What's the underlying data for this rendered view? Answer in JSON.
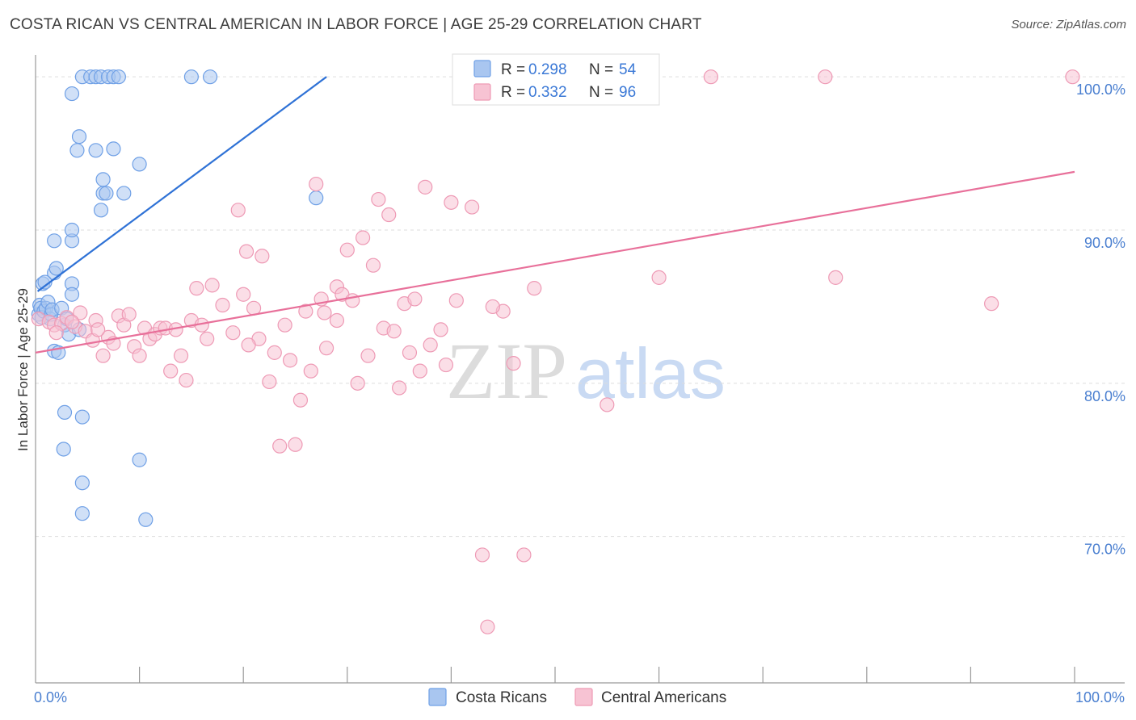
{
  "header": {
    "title": "COSTA RICAN VS CENTRAL AMERICAN IN LABOR FORCE | AGE 25-29 CORRELATION CHART",
    "source": "Source: ZipAtlas.com"
  },
  "watermark": {
    "zip": "ZIP",
    "atlas": "atlas"
  },
  "legend": {
    "items": [
      {
        "r_label": "R =",
        "r_value": "0.298",
        "n_label": "N =",
        "n_value": "54",
        "color": "#6fa0e6"
      },
      {
        "r_label": "R =",
        "r_value": "0.332",
        "n_label": "N =",
        "n_value": "96",
        "color": "#f3a6bf"
      }
    ]
  },
  "colors": {
    "blue_fill": "#a9c6f0",
    "blue_stroke": "#6fa0e6",
    "blue_line": "#2f72d6",
    "pink_fill": "#f7c3d3",
    "pink_stroke": "#ee9ab5",
    "pink_line": "#e8709a",
    "tick_text": "#4a7fd0",
    "grid": "#dddddd"
  },
  "chart_data": {
    "type": "scatter",
    "title": "COSTA RICAN VS CENTRAL AMERICAN IN LABOR FORCE | AGE 25-29 CORRELATION CHART",
    "xlabel": "",
    "ylabel": "In Labor Force | Age 25-29",
    "xlim": [
      0,
      100
    ],
    "ylim": [
      60.5,
      100.8
    ],
    "x_tick_labels": [
      "0.0%",
      "100.0%"
    ],
    "y_ticks": [
      70,
      80,
      90,
      100
    ],
    "y_tick_labels": [
      "70.0%",
      "80.0%",
      "90.0%",
      "100.0%"
    ],
    "series": [
      {
        "name": "Costa Ricans",
        "R": 0.298,
        "N": 54,
        "trend": {
          "x0": 0.2,
          "y0": 86.0,
          "x1": 28.0,
          "y1": 100.0
        },
        "points": [
          [
            0.3,
            84.5
          ],
          [
            0.4,
            85.1
          ],
          [
            0.5,
            84.9
          ],
          [
            0.6,
            84.3
          ],
          [
            0.8,
            84.7
          ],
          [
            1.0,
            84.9
          ],
          [
            1.2,
            85.3
          ],
          [
            1.4,
            84.2
          ],
          [
            1.5,
            84.5
          ],
          [
            1.6,
            84.8
          ],
          [
            0.7,
            86.5
          ],
          [
            1.8,
            87.2
          ],
          [
            2.0,
            87.5
          ],
          [
            1.8,
            89.3
          ],
          [
            3.5,
            89.3
          ],
          [
            3.5,
            90.0
          ],
          [
            3.5,
            86.5
          ],
          [
            3.5,
            85.8
          ],
          [
            1.8,
            82.1
          ],
          [
            2.2,
            82.0
          ],
          [
            2.5,
            84.9
          ],
          [
            2.8,
            83.8
          ],
          [
            3.0,
            84.2
          ],
          [
            3.2,
            83.2
          ],
          [
            4.2,
            83.5
          ],
          [
            4.2,
            96.1
          ],
          [
            4.0,
            95.2
          ],
          [
            3.5,
            98.9
          ],
          [
            4.5,
            100.0
          ],
          [
            5.3,
            100.0
          ],
          [
            5.8,
            100.0
          ],
          [
            6.3,
            100.0
          ],
          [
            7.0,
            100.0
          ],
          [
            7.5,
            100.0
          ],
          [
            8.0,
            100.0
          ],
          [
            7.5,
            95.3
          ],
          [
            5.8,
            95.2
          ],
          [
            6.5,
            93.3
          ],
          [
            6.5,
            92.4
          ],
          [
            6.3,
            91.3
          ],
          [
            6.8,
            92.4
          ],
          [
            8.5,
            92.4
          ],
          [
            10.0,
            94.3
          ],
          [
            15.0,
            100.0
          ],
          [
            16.8,
            100.0
          ],
          [
            27.0,
            92.1
          ],
          [
            2.8,
            78.1
          ],
          [
            4.5,
            77.8
          ],
          [
            2.7,
            75.7
          ],
          [
            10.0,
            75.0
          ],
          [
            4.5,
            73.5
          ],
          [
            4.5,
            71.5
          ],
          [
            10.6,
            71.1
          ],
          [
            0.9,
            86.6
          ]
        ]
      },
      {
        "name": "Central Americans",
        "R": 0.332,
        "N": 96,
        "trend": {
          "x0": 0.0,
          "y0": 82.0,
          "x1": 100.0,
          "y1": 93.8
        },
        "points": [
          [
            0.3,
            84.2
          ],
          [
            1.3,
            84.0
          ],
          [
            1.8,
            83.8
          ],
          [
            2.5,
            83.9
          ],
          [
            3.0,
            84.3
          ],
          [
            3.8,
            83.7
          ],
          [
            4.3,
            84.6
          ],
          [
            4.8,
            83.4
          ],
          [
            5.5,
            82.8
          ],
          [
            5.8,
            84.1
          ],
          [
            6.5,
            81.8
          ],
          [
            7.0,
            83.0
          ],
          [
            7.5,
            82.6
          ],
          [
            8.0,
            84.4
          ],
          [
            8.5,
            83.8
          ],
          [
            9.0,
            84.5
          ],
          [
            9.5,
            82.4
          ],
          [
            10.0,
            81.8
          ],
          [
            10.5,
            83.6
          ],
          [
            11.0,
            82.9
          ],
          [
            11.5,
            83.2
          ],
          [
            12.0,
            83.6
          ],
          [
            12.5,
            83.6
          ],
          [
            13.0,
            80.8
          ],
          [
            13.5,
            83.5
          ],
          [
            14.0,
            81.8
          ],
          [
            14.5,
            80.2
          ],
          [
            15.0,
            84.1
          ],
          [
            15.5,
            86.2
          ],
          [
            16.0,
            83.8
          ],
          [
            16.5,
            82.9
          ],
          [
            17.0,
            86.4
          ],
          [
            18.0,
            85.1
          ],
          [
            19.0,
            83.3
          ],
          [
            19.5,
            91.3
          ],
          [
            20.0,
            85.8
          ],
          [
            20.3,
            88.6
          ],
          [
            21.0,
            84.9
          ],
          [
            21.5,
            82.9
          ],
          [
            21.8,
            88.3
          ],
          [
            22.5,
            80.1
          ],
          [
            23.0,
            82.0
          ],
          [
            23.5,
            75.9
          ],
          [
            24.0,
            83.8
          ],
          [
            24.5,
            81.5
          ],
          [
            25.0,
            76.0
          ],
          [
            25.5,
            78.9
          ],
          [
            26.0,
            84.7
          ],
          [
            26.5,
            80.8
          ],
          [
            27.0,
            93.0
          ],
          [
            27.5,
            85.5
          ],
          [
            28.0,
            82.3
          ],
          [
            29.0,
            86.3
          ],
          [
            29.5,
            85.8
          ],
          [
            30.0,
            88.7
          ],
          [
            30.5,
            85.4
          ],
          [
            31.0,
            80.0
          ],
          [
            31.5,
            89.5
          ],
          [
            32.0,
            81.8
          ],
          [
            32.5,
            87.7
          ],
          [
            33.0,
            92.0
          ],
          [
            33.5,
            83.6
          ],
          [
            34.0,
            91.0
          ],
          [
            34.5,
            83.4
          ],
          [
            35.0,
            79.7
          ],
          [
            35.5,
            85.2
          ],
          [
            36.0,
            82.0
          ],
          [
            36.5,
            85.5
          ],
          [
            37.0,
            80.8
          ],
          [
            37.5,
            92.8
          ],
          [
            38.0,
            82.5
          ],
          [
            39.0,
            83.5
          ],
          [
            40.0,
            91.8
          ],
          [
            40.5,
            85.4
          ],
          [
            42.0,
            91.5
          ],
          [
            43.0,
            68.8
          ],
          [
            43.5,
            64.1
          ],
          [
            45.0,
            84.7
          ],
          [
            46.0,
            81.3
          ],
          [
            47.0,
            68.8
          ],
          [
            48.0,
            86.2
          ],
          [
            55.0,
            78.6
          ],
          [
            60.0,
            86.9
          ],
          [
            65.0,
            100.0
          ],
          [
            76.0,
            100.0
          ],
          [
            77.0,
            86.9
          ],
          [
            92.0,
            85.2
          ],
          [
            99.8,
            100.0
          ],
          [
            2.0,
            83.3
          ],
          [
            3.5,
            84.0
          ],
          [
            6.0,
            83.5
          ],
          [
            20.5,
            82.5
          ],
          [
            27.8,
            84.6
          ],
          [
            39.5,
            81.2
          ],
          [
            44.0,
            85.0
          ],
          [
            29.0,
            84.1
          ]
        ]
      }
    ],
    "legend_position": "top-center",
    "bottom_legend": [
      "Costa Ricans",
      "Central Americans"
    ],
    "grid": true
  }
}
